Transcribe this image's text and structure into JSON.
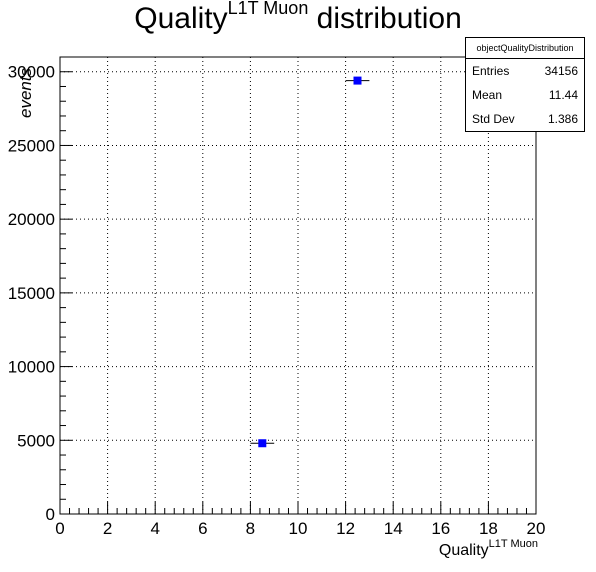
{
  "title": {
    "main": "Quality",
    "sup": "L1T Muon",
    "suffix": "distribution"
  },
  "stats": {
    "name": "objectQualityDistribution",
    "rows": [
      {
        "label": "Entries",
        "value": "34156"
      },
      {
        "label": "Mean",
        "value": "11.44"
      },
      {
        "label": "Std Dev",
        "value": "1.386"
      }
    ]
  },
  "chart_data": {
    "type": "scatter",
    "title": "Quality L1T Muon distribution",
    "xlabel": "Quality L1T Muon",
    "ylabel": "events",
    "xlim": [
      0,
      20
    ],
    "ylim": [
      0,
      31000
    ],
    "xticks": [
      0,
      2,
      4,
      6,
      8,
      10,
      12,
      14,
      16,
      18,
      20
    ],
    "yticks": [
      0,
      5000,
      10000,
      15000,
      20000,
      25000,
      30000
    ],
    "grid": true,
    "marker_color": "#0000ff",
    "points": [
      {
        "x": 8.5,
        "y": 4800
      },
      {
        "x": 12.5,
        "y": 29400
      }
    ],
    "bin_width": 1
  }
}
